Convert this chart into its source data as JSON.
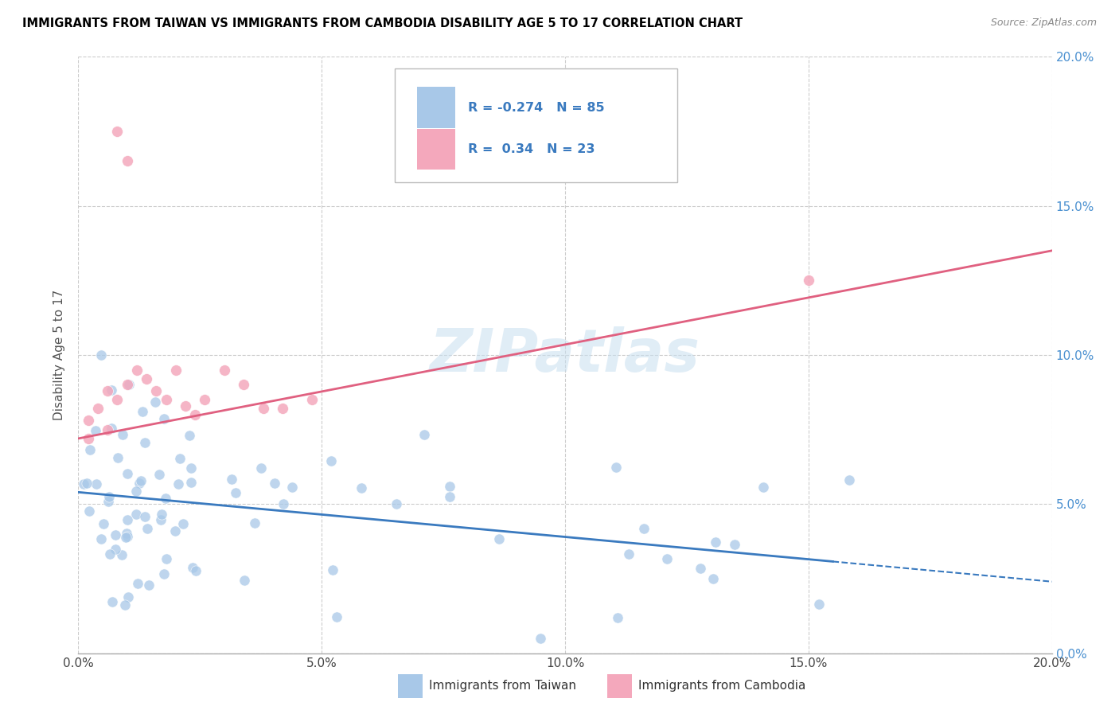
{
  "title": "IMMIGRANTS FROM TAIWAN VS IMMIGRANTS FROM CAMBODIA DISABILITY AGE 5 TO 17 CORRELATION CHART",
  "source": "Source: ZipAtlas.com",
  "ylabel": "Disability Age 5 to 17",
  "legend_taiwan": "Immigrants from Taiwan",
  "legend_cambodia": "Immigrants from Cambodia",
  "taiwan_r": -0.274,
  "taiwan_n": 85,
  "cambodia_r": 0.34,
  "cambodia_n": 23,
  "taiwan_color": "#a8c8e8",
  "cambodia_color": "#f4a8bc",
  "taiwan_line_color": "#3a7abf",
  "cambodia_line_color": "#e06080",
  "watermark": "ZIPatlas",
  "xmin": 0.0,
  "xmax": 0.2,
  "ymin": 0.0,
  "ymax": 0.2,
  "xticks": [
    0.0,
    0.05,
    0.1,
    0.15,
    0.2
  ],
  "xticklabels": [
    "0.0%",
    "5.0%",
    "10.0%",
    "15.0%",
    "20.0%"
  ],
  "yticks": [
    0.0,
    0.05,
    0.1,
    0.15,
    0.2
  ],
  "yticklabels": [
    "0.0%",
    "5.0%",
    "10.0%",
    "15.0%",
    "20.0%"
  ],
  "taiwan_trend_x0": 0.0,
  "taiwan_trend_y0": 0.054,
  "taiwan_trend_x1": 0.2,
  "taiwan_trend_y1": 0.024,
  "cambodia_trend_x0": 0.0,
  "cambodia_trend_y0": 0.072,
  "cambodia_trend_x1": 0.2,
  "cambodia_trend_y1": 0.135
}
